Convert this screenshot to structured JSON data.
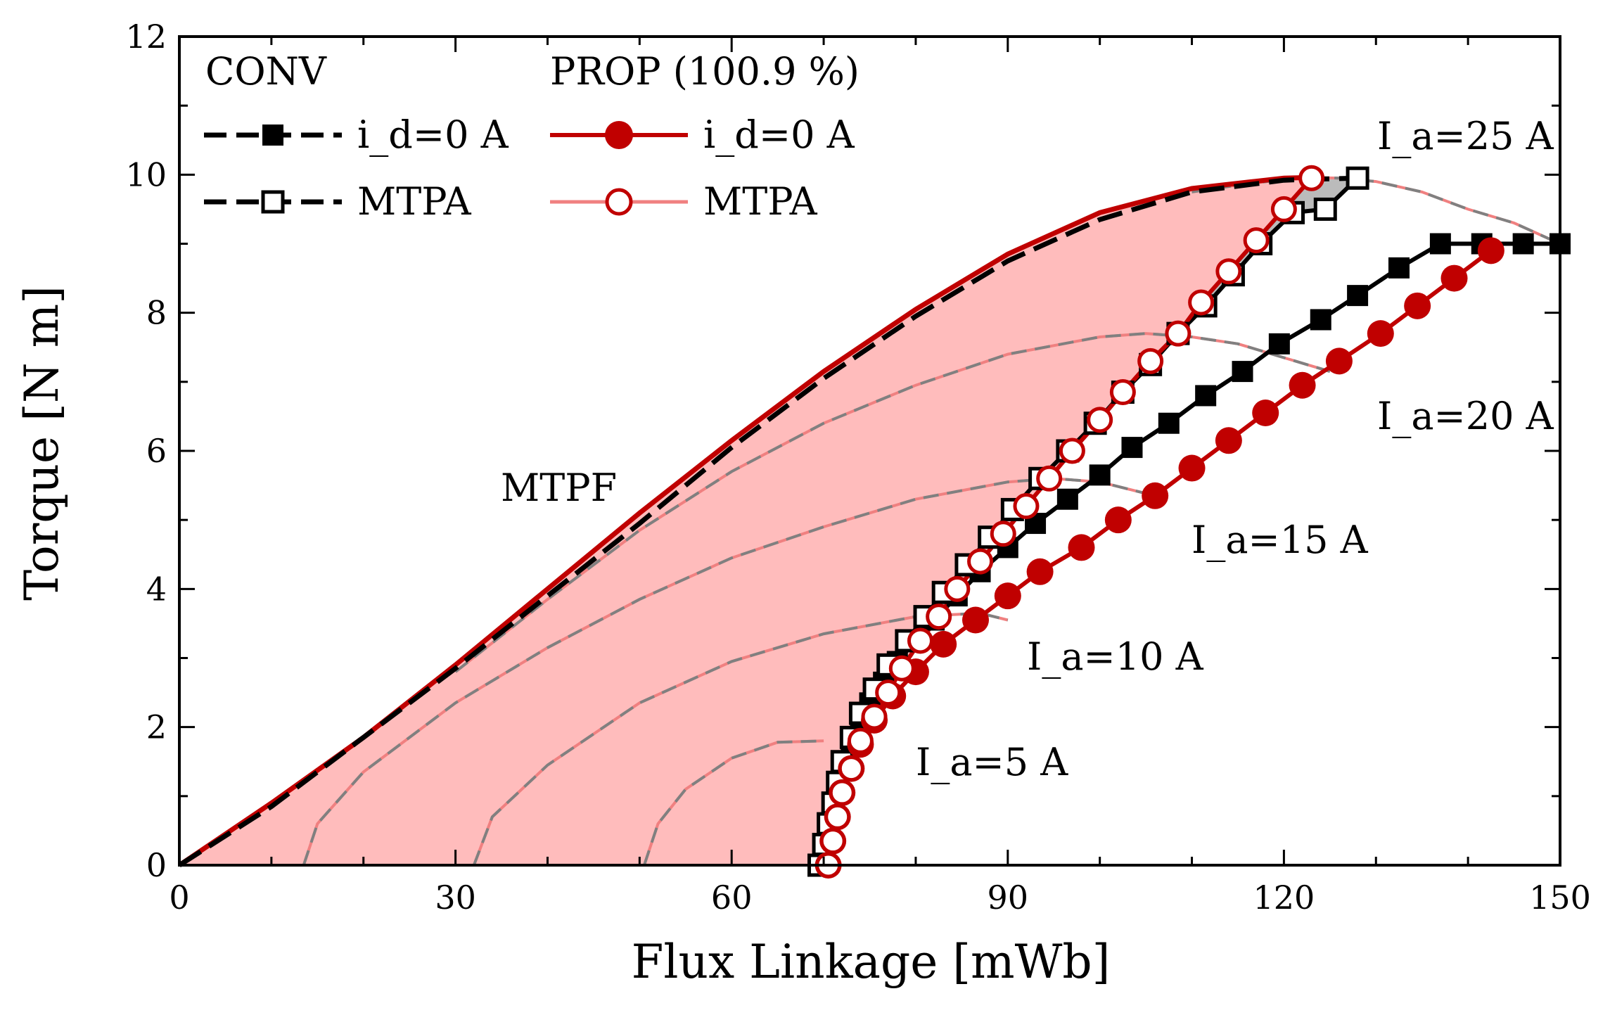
{
  "chart_data": {
    "type": "line",
    "title": "",
    "xlabel": "Flux Linkage [mWb]",
    "ylabel": "Torque [N m]",
    "xlim": [
      0,
      150
    ],
    "ylim": [
      0,
      12
    ],
    "xticks": [
      0,
      30,
      60,
      90,
      120,
      150
    ],
    "yticks": [
      0,
      2,
      4,
      6,
      8,
      10,
      12
    ],
    "xtick_labels": [
      "0",
      "30",
      "60",
      "90",
      "120",
      "150"
    ],
    "ytick_labels": [
      "0",
      "2",
      "4",
      "6",
      "8",
      "10",
      "12"
    ],
    "legend": {
      "position": "top-left",
      "conv_header": "CONV",
      "prop_header": "PROP (100.9 %)",
      "conv_id0": "i_d=0 A",
      "conv_mtpa": "MTPA",
      "prop_id0": "i_d=0 A",
      "prop_mtpa": "MTPA"
    },
    "annotations": {
      "mtpf": "MTPF",
      "ia5": "I_a=5 A",
      "ia10": "I_a=10 A",
      "ia15": "I_a=15 A",
      "ia20": "I_a=20 A",
      "ia25": "I_a=25 A"
    },
    "colors": {
      "conv": "#000000",
      "prop": "#c00000",
      "fill_prop": "#ffbcbc",
      "fill_conv": "#bbbbbb",
      "circle_prop": "#f08080",
      "circle_conv": "#808080"
    },
    "series": [
      {
        "name": "CONV MTPF",
        "style": "dashed",
        "x": [
          0,
          10,
          20,
          30,
          40,
          50,
          60,
          70,
          80,
          90,
          100,
          110,
          120,
          122,
          128
        ],
        "y": [
          0,
          0.85,
          1.85,
          2.85,
          3.9,
          4.95,
          6.05,
          7.05,
          7.95,
          8.75,
          9.35,
          9.75,
          9.92,
          9.93,
          9.95
        ]
      },
      {
        "name": "PROP MTPF",
        "style": "solid",
        "x": [
          0,
          10,
          20,
          30,
          40,
          50,
          60,
          70,
          80,
          90,
          100,
          110,
          120,
          123
        ],
        "y": [
          0,
          0.9,
          1.85,
          2.9,
          4.0,
          5.1,
          6.15,
          7.15,
          8.05,
          8.85,
          9.45,
          9.8,
          9.95,
          9.96
        ]
      },
      {
        "name": "CONV i_d=0 A",
        "marker": "filled-square",
        "x": [
          69.5,
          70,
          70.5,
          71,
          71.5,
          72,
          73,
          74,
          75,
          76.5,
          78,
          80,
          82,
          84.5,
          87,
          90,
          93,
          96.5,
          100,
          103.5,
          107.5,
          111.5,
          115.5,
          119.5,
          124,
          128,
          132.5,
          137,
          141.5,
          146,
          150
        ],
        "y": [
          0,
          0.3,
          0.6,
          0.9,
          1.15,
          1.45,
          1.75,
          2.05,
          2.35,
          2.65,
          2.95,
          3.25,
          3.55,
          3.9,
          4.25,
          4.6,
          4.95,
          5.3,
          5.65,
          6.05,
          6.4,
          6.8,
          7.15,
          7.55,
          7.9,
          8.25,
          8.65,
          9.0,
          9.0,
          9.0,
          9.0
        ]
      },
      {
        "name": "PROP i_d=0 A",
        "marker": "filled-circle",
        "x": [
          70.5,
          71,
          71.5,
          72,
          73,
          74,
          75.5,
          77.5,
          80,
          83,
          86.5,
          90,
          93.5,
          98,
          102,
          106,
          110,
          114,
          118,
          122,
          126,
          130.5,
          134.5,
          138.5,
          142.5
        ],
        "y": [
          0,
          0.35,
          0.7,
          1.05,
          1.4,
          1.75,
          2.1,
          2.45,
          2.8,
          3.2,
          3.55,
          3.9,
          4.25,
          4.6,
          5.0,
          5.35,
          5.75,
          6.15,
          6.55,
          6.95,
          7.3,
          7.7,
          8.1,
          8.5,
          8.9
        ]
      },
      {
        "name": "CONV MTPA",
        "marker": "open-square",
        "x": [
          69.5,
          70,
          70.5,
          71,
          71.5,
          72,
          73,
          74,
          75.5,
          77,
          79,
          81,
          83,
          85.5,
          88,
          90.5,
          93.5,
          96.5,
          99.5,
          102.5,
          105.5,
          108.5,
          111.5,
          114.5,
          117.5,
          121,
          124.5,
          128
        ],
        "y": [
          0,
          0.3,
          0.6,
          0.9,
          1.2,
          1.5,
          1.85,
          2.2,
          2.55,
          2.9,
          3.25,
          3.6,
          3.95,
          4.35,
          4.75,
          5.15,
          5.6,
          6.0,
          6.4,
          6.85,
          7.25,
          7.7,
          8.1,
          8.55,
          9.0,
          9.45,
          9.5,
          9.95
        ]
      },
      {
        "name": "PROP MTPA",
        "marker": "open-circle",
        "x": [
          70.5,
          71,
          71.5,
          72,
          73,
          74,
          75.5,
          77,
          78.5,
          80.5,
          82.5,
          84.5,
          87,
          89.5,
          92,
          94.5,
          97,
          100,
          102.5,
          105.5,
          108.5,
          111,
          114,
          117,
          120,
          123
        ],
        "y": [
          0,
          0.35,
          0.7,
          1.05,
          1.4,
          1.8,
          2.15,
          2.5,
          2.85,
          3.25,
          3.6,
          4.0,
          4.4,
          4.8,
          5.2,
          5.6,
          6.0,
          6.45,
          6.85,
          7.3,
          7.7,
          8.15,
          8.6,
          9.05,
          9.5,
          9.95
        ]
      }
    ],
    "current_circles": [
      {
        "ia": 5,
        "x": [
          50.5,
          52,
          55,
          60,
          65,
          70
        ],
        "y": [
          0,
          0.6,
          1.1,
          1.55,
          1.78,
          1.8
        ]
      },
      {
        "ia": 10,
        "x": [
          32,
          34,
          40,
          50,
          60,
          70,
          80,
          87,
          90
        ],
        "y": [
          0,
          0.7,
          1.45,
          2.35,
          2.95,
          3.35,
          3.6,
          3.65,
          3.55
        ]
      },
      {
        "ia": 15,
        "x": [
          13.5,
          15,
          20,
          30,
          40,
          50,
          60,
          70,
          80,
          90,
          95,
          100,
          106
        ],
        "y": [
          0,
          0.6,
          1.35,
          2.35,
          3.15,
          3.85,
          4.45,
          4.9,
          5.3,
          5.55,
          5.6,
          5.55,
          5.35
        ]
      },
      {
        "ia": 20,
        "x": [
          30,
          40,
          50,
          60,
          70,
          80,
          90,
          100,
          105,
          110,
          115,
          120,
          125
        ],
        "y": [
          2.8,
          3.85,
          4.85,
          5.7,
          6.4,
          6.95,
          7.4,
          7.65,
          7.7,
          7.65,
          7.55,
          7.35,
          7.15
        ]
      },
      {
        "ia": 25,
        "x": [
          110,
          115,
          120,
          123,
          126,
          130,
          135,
          140,
          145,
          150
        ],
        "y": [
          9.75,
          9.85,
          9.93,
          9.96,
          9.95,
          9.9,
          9.75,
          9.5,
          9.3,
          9.0
        ]
      }
    ]
  }
}
